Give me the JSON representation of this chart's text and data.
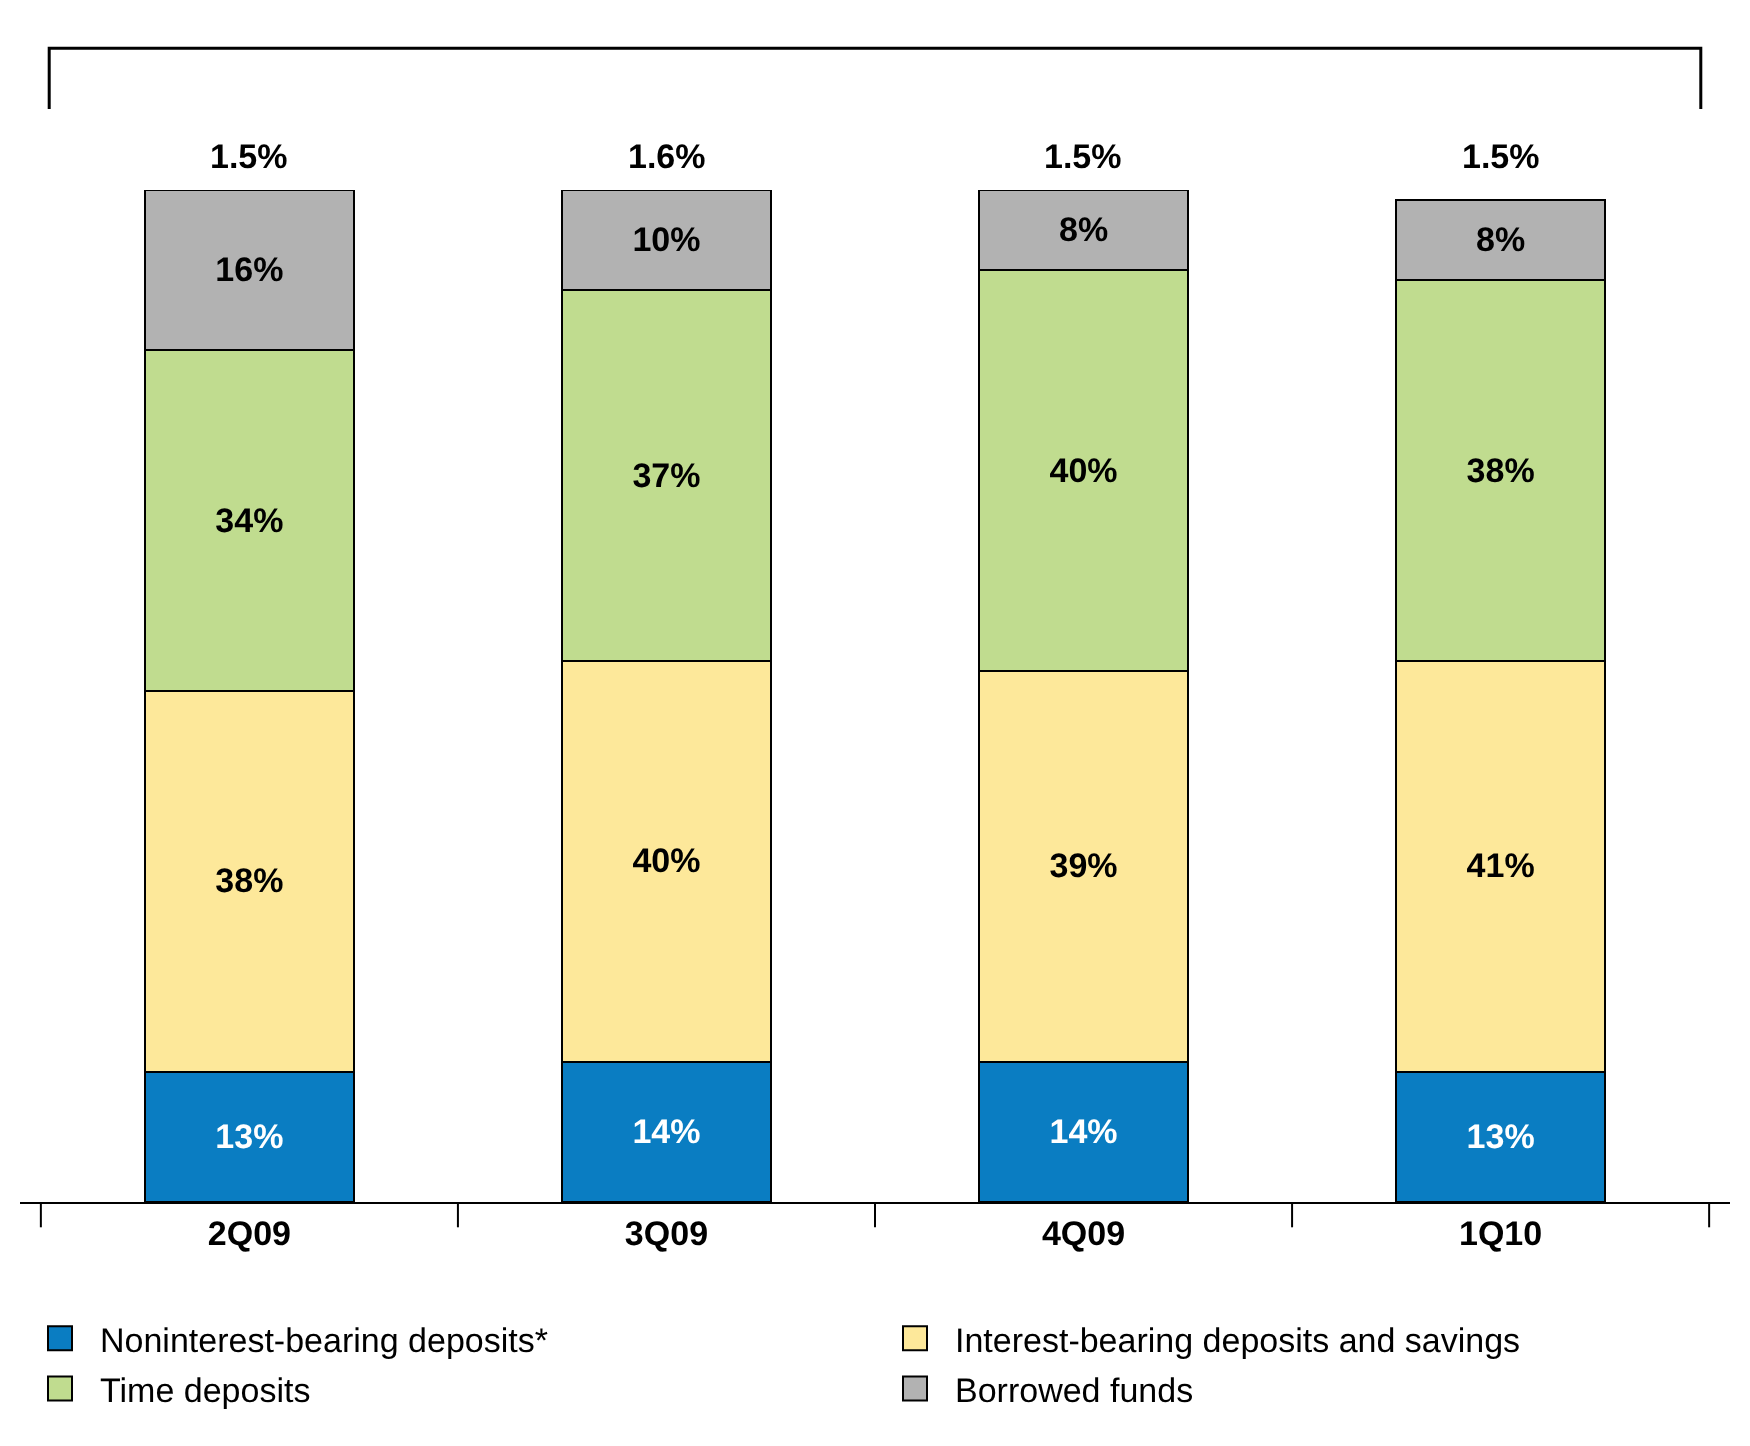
{
  "chart_data": {
    "type": "bar",
    "stacked": true,
    "legend": "bottom",
    "categories": [
      "2Q09",
      "3Q09",
      "4Q09",
      "1Q10"
    ],
    "series": [
      {
        "name": "Noninterest-bearing deposits*",
        "color": "#0a7dc2",
        "values": [
          13,
          14,
          14,
          13
        ],
        "value_labels": [
          "13%",
          "14%",
          "14%",
          "13%"
        ]
      },
      {
        "name": "Interest-bearing deposits and savings",
        "color": "#fde89a",
        "values": [
          38,
          40,
          39,
          41
        ],
        "value_labels": [
          "38%",
          "40%",
          "39%",
          "41%"
        ]
      },
      {
        "name": "Time deposits",
        "color": "#c0dc8f",
        "values": [
          34,
          37,
          40,
          38
        ],
        "value_labels": [
          "34%",
          "37%",
          "40%",
          "38%"
        ]
      },
      {
        "name": "Borrowed funds",
        "color": "#b2b2b2",
        "values": [
          16,
          10,
          8,
          8
        ],
        "value_labels": [
          "16%",
          "10%",
          "8%",
          "8%"
        ]
      }
    ],
    "annotations": [
      "1.5%",
      "1.6%",
      "1.5%",
      "1.5%"
    ]
  }
}
